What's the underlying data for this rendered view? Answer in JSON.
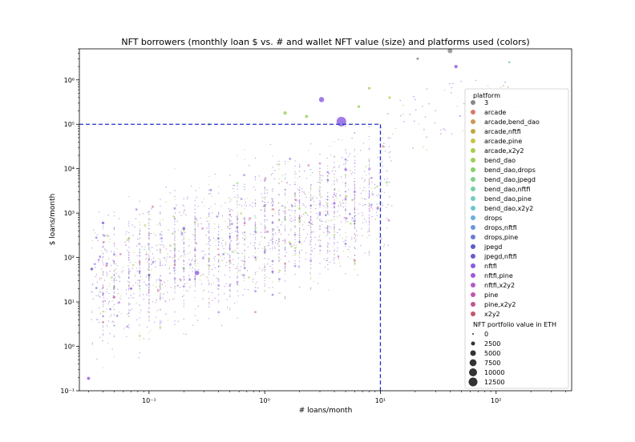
{
  "chart_data": {
    "type": "scatter",
    "title": "NFT borrowers (monthly loan $ vs. # and wallet NFT value (size) and platforms used (colors)",
    "xlabel": "# loans/month",
    "ylabel": "$ loans/month",
    "x_scale": "log",
    "y_scale": "log",
    "xlim": [
      0.025,
      450
    ],
    "ylim": [
      0.1,
      5000000
    ],
    "x_ticks": [
      {
        "value": 0.1,
        "label": "10⁻¹"
      },
      {
        "value": 1,
        "label": "10⁰"
      },
      {
        "value": 10,
        "label": "10¹"
      },
      {
        "value": 100,
        "label": "10²"
      }
    ],
    "y_ticks": [
      {
        "value": 0.1,
        "label": "10⁻¹"
      },
      {
        "value": 1,
        "label": "10⁰"
      },
      {
        "value": 10,
        "label": "10¹"
      },
      {
        "value": 100,
        "label": "10²"
      },
      {
        "value": 1000,
        "label": "10³"
      },
      {
        "value": 10000,
        "label": "10⁴"
      },
      {
        "value": 100000,
        "label": "10⁵"
      },
      {
        "value": 1000000,
        "label": "10⁶"
      }
    ],
    "grid": false,
    "reference_lines": {
      "x_max": 10,
      "y_max": 100000,
      "color": "#2233cc",
      "style": "dashed"
    },
    "legend": {
      "placement": "right",
      "platform_title": "platform",
      "size_title": "NFT portfolio value in ETH",
      "platforms": [
        {
          "name": "3",
          "color": "#888888"
        },
        {
          "name": "arcade",
          "color": "#d87a6a"
        },
        {
          "name": "arcade,bend_dao",
          "color": "#c99a55"
        },
        {
          "name": "arcade,nftfi",
          "color": "#bdaa40"
        },
        {
          "name": "arcade,pine",
          "color": "#c6c24a"
        },
        {
          "name": "arcade,x2y2",
          "color": "#a9cc4c"
        },
        {
          "name": "bend_dao",
          "color": "#9ad05a"
        },
        {
          "name": "bend_dao,drops",
          "color": "#86d068"
        },
        {
          "name": "bend_dao,jpegd",
          "color": "#7fd08c"
        },
        {
          "name": "bend_dao,nftfi",
          "color": "#78cfa8"
        },
        {
          "name": "bend_dao,pine",
          "color": "#70ccc0"
        },
        {
          "name": "bend_dao,x2y2",
          "color": "#69c6d0"
        },
        {
          "name": "drops",
          "color": "#6ab0dc"
        },
        {
          "name": "drops,nftfi",
          "color": "#6a96dc"
        },
        {
          "name": "drops,pine",
          "color": "#6a7cd8"
        },
        {
          "name": "jpegd",
          "color": "#5a5ec8"
        },
        {
          "name": "jpegd,nftfi",
          "color": "#6a5ad0"
        },
        {
          "name": "nftfi",
          "color": "#8a5ae0"
        },
        {
          "name": "nftfi,pine",
          "color": "#a05ad8"
        },
        {
          "name": "nftfi,x2y2",
          "color": "#b65ac8"
        },
        {
          "name": "pine",
          "color": "#c255b0"
        },
        {
          "name": "pine,x2y2",
          "color": "#c25590"
        },
        {
          "name": "x2y2",
          "color": "#c25570"
        }
      ],
      "sizes": [
        {
          "value": 0,
          "label": "0"
        },
        {
          "value": 2500,
          "label": "2500"
        },
        {
          "value": 5000,
          "label": "5000"
        },
        {
          "value": 7500,
          "label": "7500"
        },
        {
          "value": 10000,
          "label": "10000"
        },
        {
          "value": 12500,
          "label": "12500"
        }
      ]
    },
    "highlight_points": [
      {
        "x": 40,
        "y": 4500000,
        "size": 3000,
        "platform": "3"
      },
      {
        "x": 45,
        "y": 2000000,
        "size": 1500,
        "platform": "nftfi"
      },
      {
        "x": 21,
        "y": 3000000,
        "size": 800,
        "platform": "3"
      },
      {
        "x": 130,
        "y": 2500000,
        "size": 600,
        "platform": "bend_dao,pine"
      },
      {
        "x": 4.6,
        "y": 115000,
        "size": 12000,
        "platform": "nftfi"
      },
      {
        "x": 3.1,
        "y": 360000,
        "size": 3500,
        "platform": "nftfi"
      },
      {
        "x": 0.26,
        "y": 45,
        "size": 2500,
        "platform": "nftfi"
      },
      {
        "x": 0.03,
        "y": 0.19,
        "size": 1200,
        "platform": "nftfi"
      },
      {
        "x": 0.032,
        "y": 55,
        "size": 1000,
        "platform": "jpegd,nftfi"
      },
      {
        "x": 0.04,
        "y": 600,
        "size": 900,
        "platform": "nftfi"
      },
      {
        "x": 1.5,
        "y": 180000,
        "size": 1500,
        "platform": "bend_dao"
      },
      {
        "x": 2.3,
        "y": 150000,
        "size": 1200,
        "platform": "bend_dao"
      },
      {
        "x": 8,
        "y": 650000,
        "size": 800,
        "platform": "bend_dao"
      },
      {
        "x": 6.5,
        "y": 250000,
        "size": 900,
        "platform": "bend_dao"
      },
      {
        "x": 0.33,
        "y": 100000,
        "size": 700,
        "platform": "bend_dao,drops"
      },
      {
        "x": 12,
        "y": 400000,
        "size": 700,
        "platform": "arcade,x2y2"
      },
      {
        "x": 0.2,
        "y": 450,
        "size": 1000,
        "platform": "nftfi"
      },
      {
        "x": 0.1,
        "y": 40,
        "size": 800,
        "platform": "jpegd,nftfi"
      },
      {
        "x": 0.07,
        "y": 20,
        "size": 700,
        "platform": "nftfi"
      }
    ]
  }
}
